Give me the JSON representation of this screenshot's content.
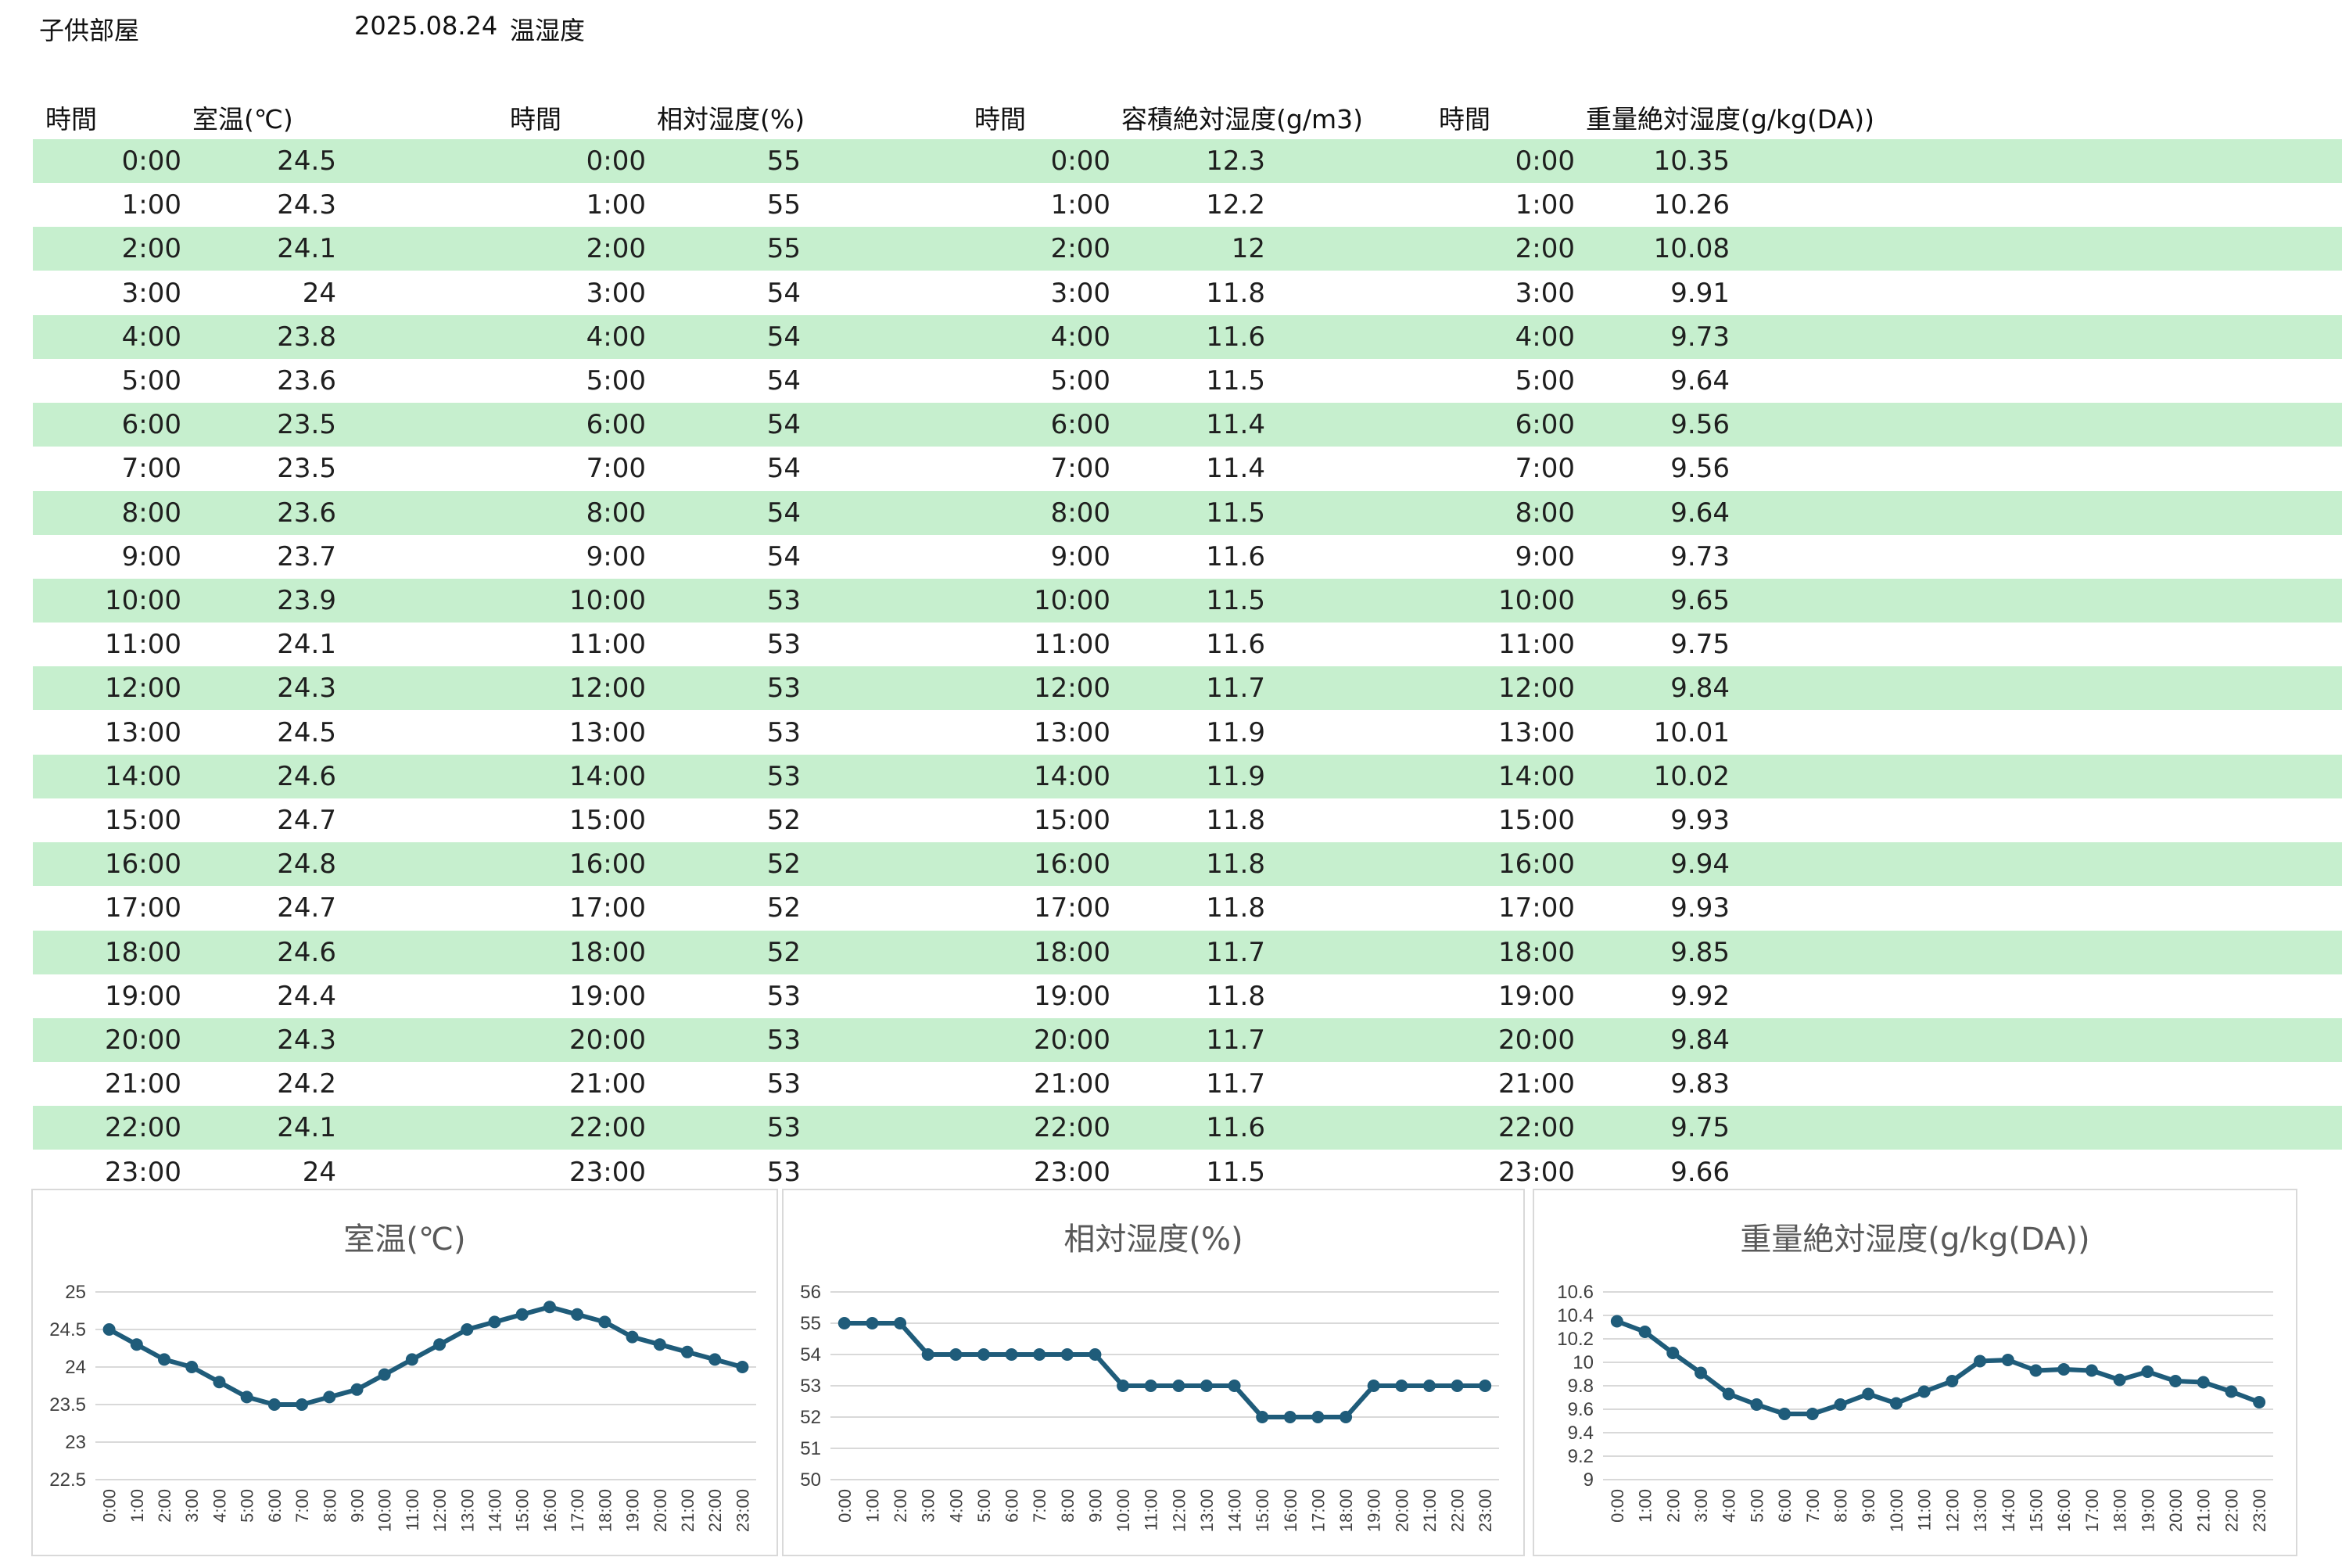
{
  "header": {
    "room": "子供部屋",
    "date": "2025.08.24",
    "subject": "温湿度"
  },
  "columns": {
    "time": "時間",
    "temp": "室温(℃)",
    "rh": "相対湿度(%)",
    "vah": "容積絶対湿度(g/m3)",
    "mah": "重量絶対湿度(g/kg(DA))"
  },
  "rows": [
    {
      "time": "0:00",
      "temp": "24.5",
      "rh": "55",
      "vah": "12.3",
      "mah": "10.35"
    },
    {
      "time": "1:00",
      "temp": "24.3",
      "rh": "55",
      "vah": "12.2",
      "mah": "10.26"
    },
    {
      "time": "2:00",
      "temp": "24.1",
      "rh": "55",
      "vah": "12",
      "mah": "10.08"
    },
    {
      "time": "3:00",
      "temp": "24",
      "rh": "54",
      "vah": "11.8",
      "mah": "9.91"
    },
    {
      "time": "4:00",
      "temp": "23.8",
      "rh": "54",
      "vah": "11.6",
      "mah": "9.73"
    },
    {
      "time": "5:00",
      "temp": "23.6",
      "rh": "54",
      "vah": "11.5",
      "mah": "9.64"
    },
    {
      "time": "6:00",
      "temp": "23.5",
      "rh": "54",
      "vah": "11.4",
      "mah": "9.56"
    },
    {
      "time": "7:00",
      "temp": "23.5",
      "rh": "54",
      "vah": "11.4",
      "mah": "9.56"
    },
    {
      "time": "8:00",
      "temp": "23.6",
      "rh": "54",
      "vah": "11.5",
      "mah": "9.64"
    },
    {
      "time": "9:00",
      "temp": "23.7",
      "rh": "54",
      "vah": "11.6",
      "mah": "9.73"
    },
    {
      "time": "10:00",
      "temp": "23.9",
      "rh": "53",
      "vah": "11.5",
      "mah": "9.65"
    },
    {
      "time": "11:00",
      "temp": "24.1",
      "rh": "53",
      "vah": "11.6",
      "mah": "9.75"
    },
    {
      "time": "12:00",
      "temp": "24.3",
      "rh": "53",
      "vah": "11.7",
      "mah": "9.84"
    },
    {
      "time": "13:00",
      "temp": "24.5",
      "rh": "53",
      "vah": "11.9",
      "mah": "10.01"
    },
    {
      "time": "14:00",
      "temp": "24.6",
      "rh": "53",
      "vah": "11.9",
      "mah": "10.02"
    },
    {
      "time": "15:00",
      "temp": "24.7",
      "rh": "52",
      "vah": "11.8",
      "mah": "9.93"
    },
    {
      "time": "16:00",
      "temp": "24.8",
      "rh": "52",
      "vah": "11.8",
      "mah": "9.94"
    },
    {
      "time": "17:00",
      "temp": "24.7",
      "rh": "52",
      "vah": "11.8",
      "mah": "9.93"
    },
    {
      "time": "18:00",
      "temp": "24.6",
      "rh": "52",
      "vah": "11.7",
      "mah": "9.85"
    },
    {
      "time": "19:00",
      "temp": "24.4",
      "rh": "53",
      "vah": "11.8",
      "mah": "9.92"
    },
    {
      "time": "20:00",
      "temp": "24.3",
      "rh": "53",
      "vah": "11.7",
      "mah": "9.84"
    },
    {
      "time": "21:00",
      "temp": "24.2",
      "rh": "53",
      "vah": "11.7",
      "mah": "9.83"
    },
    {
      "time": "22:00",
      "temp": "24.1",
      "rh": "53",
      "vah": "11.6",
      "mah": "9.75"
    },
    {
      "time": "23:00",
      "temp": "24",
      "rh": "53",
      "vah": "11.5",
      "mah": "9.66"
    }
  ],
  "colors": {
    "row_band": "#c6efce",
    "series": "#1f5c7a",
    "grid": "#d9d9d9"
  },
  "chart_data": [
    {
      "type": "line",
      "title": "室温(℃)",
      "x": [
        "0:00",
        "1:00",
        "2:00",
        "3:00",
        "4:00",
        "5:00",
        "6:00",
        "7:00",
        "8:00",
        "9:00",
        "10:00",
        "11:00",
        "12:00",
        "13:00",
        "14:00",
        "15:00",
        "16:00",
        "17:00",
        "18:00",
        "19:00",
        "20:00",
        "21:00",
        "22:00",
        "23:00"
      ],
      "values": [
        24.5,
        24.3,
        24.1,
        24,
        23.8,
        23.6,
        23.5,
        23.5,
        23.6,
        23.7,
        23.9,
        24.1,
        24.3,
        24.5,
        24.6,
        24.7,
        24.8,
        24.7,
        24.6,
        24.4,
        24.3,
        24.2,
        24.1,
        24
      ],
      "ylim": [
        22.5,
        25
      ],
      "yticks": [
        "22.5",
        "23",
        "23.5",
        "24",
        "24.5",
        "25"
      ],
      "grid": true,
      "legend": "none"
    },
    {
      "type": "line",
      "title": "相対湿度(%)",
      "x": [
        "0:00",
        "1:00",
        "2:00",
        "3:00",
        "4:00",
        "5:00",
        "6:00",
        "7:00",
        "8:00",
        "9:00",
        "10:00",
        "11:00",
        "12:00",
        "13:00",
        "14:00",
        "15:00",
        "16:00",
        "17:00",
        "18:00",
        "19:00",
        "20:00",
        "21:00",
        "22:00",
        "23:00"
      ],
      "values": [
        55,
        55,
        55,
        54,
        54,
        54,
        54,
        54,
        54,
        54,
        53,
        53,
        53,
        53,
        53,
        52,
        52,
        52,
        52,
        53,
        53,
        53,
        53,
        53
      ],
      "ylim": [
        50,
        56
      ],
      "yticks": [
        "50",
        "51",
        "52",
        "53",
        "54",
        "55",
        "56"
      ],
      "grid": true,
      "legend": "none"
    },
    {
      "type": "line",
      "title": "重量絶対湿度(g/kg(DA))",
      "x": [
        "0:00",
        "1:00",
        "2:00",
        "3:00",
        "4:00",
        "5:00",
        "6:00",
        "7:00",
        "8:00",
        "9:00",
        "10:00",
        "11:00",
        "12:00",
        "13:00",
        "14:00",
        "15:00",
        "16:00",
        "17:00",
        "18:00",
        "19:00",
        "20:00",
        "21:00",
        "22:00",
        "23:00"
      ],
      "values": [
        10.35,
        10.26,
        10.08,
        9.91,
        9.73,
        9.64,
        9.56,
        9.56,
        9.64,
        9.73,
        9.65,
        9.75,
        9.84,
        10.01,
        10.02,
        9.93,
        9.94,
        9.93,
        9.85,
        9.92,
        9.84,
        9.83,
        9.75,
        9.66
      ],
      "ylim": [
        9,
        10.6
      ],
      "yticks": [
        "9",
        "9.2",
        "9.4",
        "9.6",
        "9.8",
        "10",
        "10.2",
        "10.4",
        "10.6"
      ],
      "grid": true,
      "legend": "none"
    }
  ]
}
